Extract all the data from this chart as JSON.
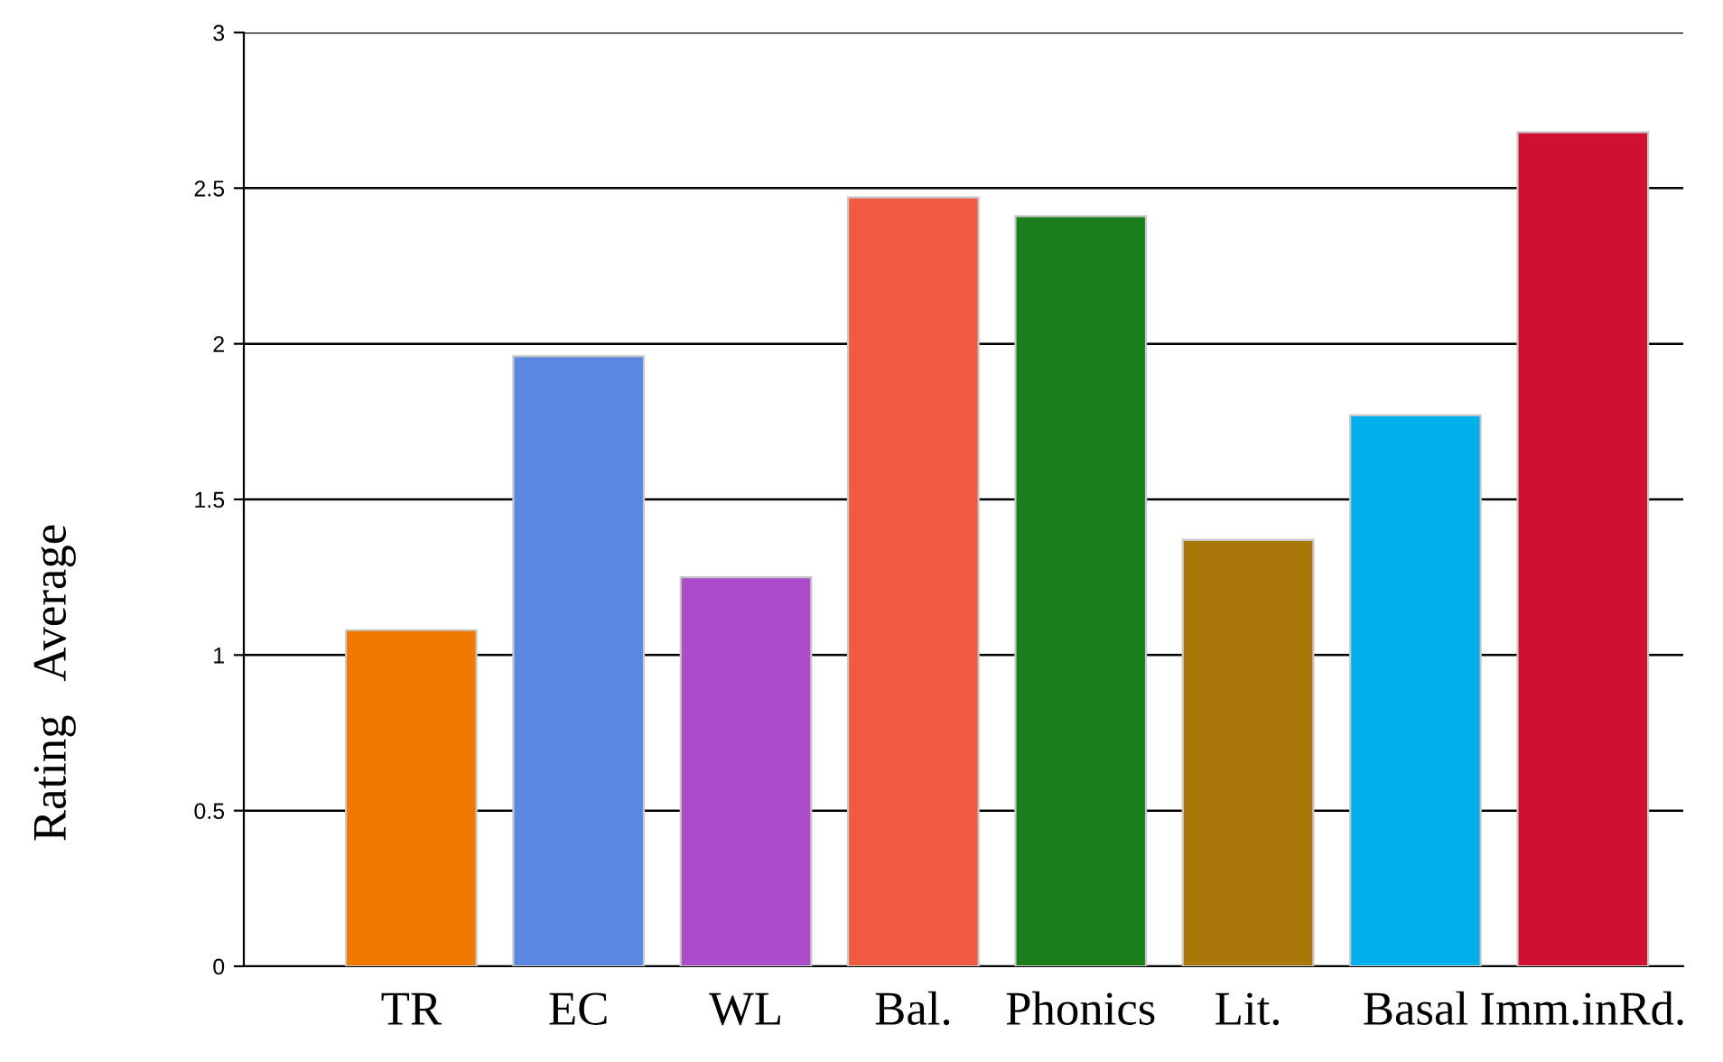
{
  "chart_data": {
    "type": "bar",
    "ylabel": "Rating   Average",
    "categories": [
      "TR",
      "EC",
      "WL",
      "Bal.",
      "Phonics",
      "Lit.",
      "Basal",
      "Imm.inRd."
    ],
    "values": [
      1.08,
      1.96,
      1.25,
      2.47,
      2.41,
      1.37,
      1.77,
      2.68
    ],
    "colors": [
      "#f07a00",
      "#5a88e0",
      "#ab4ccb",
      "#f05a40",
      "#1a7f1a",
      "#aa780a",
      "#00b0ea",
      "#d01030"
    ],
    "ylim": [
      0,
      3
    ],
    "yticks": [
      0,
      0.5,
      1,
      1.5,
      2,
      2.5,
      3
    ],
    "grid": "y"
  }
}
